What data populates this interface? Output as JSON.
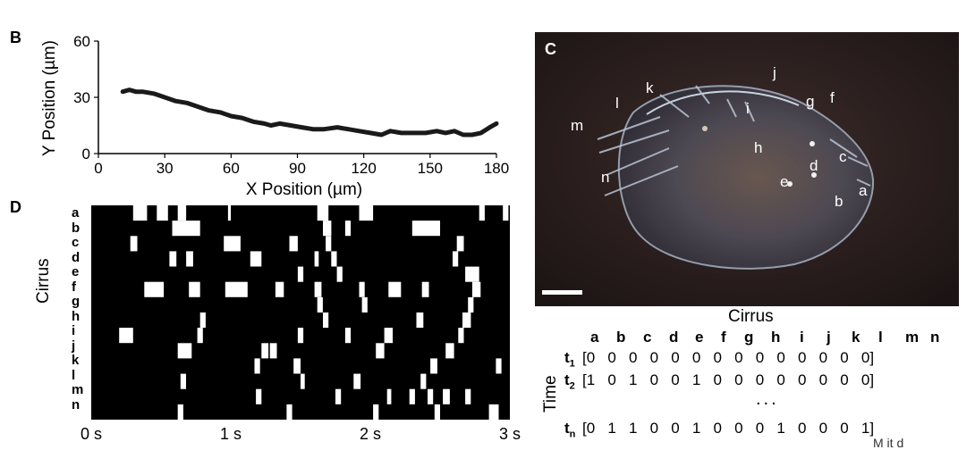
{
  "panels": {
    "B": "B",
    "C": "C",
    "D": "D"
  },
  "chart_data": {
    "type": "line",
    "xlabel": "X Position (µm)",
    "ylabel": "Y Position (µm)",
    "xlim": [
      0,
      180
    ],
    "ylim": [
      0,
      60
    ],
    "x_ticks": [
      "0",
      "30",
      "60",
      "90",
      "120",
      "150",
      "180"
    ],
    "y_ticks": [
      "0",
      "30",
      "60"
    ],
    "series": [
      {
        "x": [
          11,
          14,
          17,
          20,
          25,
          30,
          35,
          40,
          45,
          50,
          55,
          60,
          65,
          70,
          75,
          78,
          82,
          87,
          92,
          97,
          102,
          108,
          113,
          118,
          123,
          128,
          132,
          137,
          142,
          148,
          153,
          157,
          161,
          165,
          169,
          173,
          177,
          180
        ],
        "y": [
          33,
          34,
          33,
          33,
          32,
          30,
          28,
          27,
          25,
          23,
          22,
          20,
          19,
          17,
          16,
          15,
          16,
          15,
          14,
          13,
          13,
          14,
          13,
          12,
          11,
          10,
          12,
          11,
          11,
          11,
          12,
          11,
          12,
          10,
          10,
          11,
          14,
          16
        ]
      }
    ]
  },
  "raster": {
    "ylabel": "Cirrus",
    "rows": [
      "a",
      "b",
      "c",
      "d",
      "e",
      "f",
      "g",
      "h",
      "i",
      "j",
      "k",
      "l",
      "m",
      "n"
    ],
    "time_ticks": [
      "0 s",
      "1 s",
      "2 s",
      "3 s"
    ],
    "duration": 3,
    "events": [
      [
        [
          0.3,
          0.4
        ],
        [
          0.47,
          0.55
        ],
        [
          0.62,
          0.68
        ],
        [
          0.98,
          1.0
        ],
        [
          1.62,
          1.7
        ],
        [
          1.92,
          2.02
        ],
        [
          2.78,
          2.82
        ],
        [
          2.95,
          2.99
        ]
      ],
      [
        [
          0.58,
          0.78
        ],
        [
          1.66,
          1.72
        ],
        [
          1.82,
          1.86
        ],
        [
          2.3,
          2.5
        ]
      ],
      [
        [
          0.28,
          0.33
        ],
        [
          0.95,
          1.07
        ],
        [
          1.42,
          1.48
        ],
        [
          1.68,
          1.72
        ],
        [
          2.62,
          2.67
        ]
      ],
      [
        [
          0.56,
          0.61
        ],
        [
          0.68,
          0.73
        ],
        [
          1.14,
          1.22
        ],
        [
          1.6,
          1.63
        ],
        [
          1.72,
          1.76
        ],
        [
          2.59,
          2.63
        ]
      ],
      [
        [
          1.48,
          1.52
        ],
        [
          1.76,
          1.8
        ],
        [
          2.68,
          2.78
        ]
      ],
      [
        [
          0.38,
          0.52
        ],
        [
          0.7,
          0.78
        ],
        [
          0.96,
          1.12
        ],
        [
          1.32,
          1.38
        ],
        [
          1.6,
          1.65
        ],
        [
          1.92,
          1.96
        ],
        [
          2.13,
          2.22
        ],
        [
          2.37,
          2.42
        ],
        [
          2.73,
          2.79
        ]
      ],
      [
        [
          1.62,
          1.66
        ],
        [
          1.94,
          1.98
        ],
        [
          2.7,
          2.74
        ]
      ],
      [
        [
          0.78,
          0.82
        ],
        [
          1.66,
          1.7
        ],
        [
          2.33,
          2.38
        ],
        [
          2.66,
          2.72
        ]
      ],
      [
        [
          0.2,
          0.3
        ],
        [
          0.76,
          0.8
        ],
        [
          1.48,
          1.52
        ],
        [
          1.82,
          1.86
        ],
        [
          2.1,
          2.16
        ],
        [
          2.63,
          2.67
        ]
      ],
      [
        [
          0.62,
          0.72
        ],
        [
          1.22,
          1.27
        ],
        [
          1.28,
          1.33
        ],
        [
          2.04,
          2.1
        ],
        [
          2.54,
          2.6
        ]
      ],
      [
        [
          1.17,
          1.21
        ],
        [
          1.45,
          1.5
        ],
        [
          2.43,
          2.48
        ],
        [
          2.9,
          2.94
        ]
      ],
      [
        [
          0.64,
          0.68
        ],
        [
          1.5,
          1.53
        ],
        [
          1.88,
          1.93
        ],
        [
          2.36,
          2.4
        ]
      ],
      [
        [
          1.18,
          1.22
        ],
        [
          1.75,
          1.79
        ],
        [
          2.12,
          2.15
        ],
        [
          2.28,
          2.32
        ],
        [
          2.41,
          2.45
        ],
        [
          2.52,
          2.57
        ],
        [
          2.68,
          2.72
        ]
      ],
      [
        [
          0.62,
          0.66
        ],
        [
          1.4,
          1.44
        ],
        [
          2.02,
          2.06
        ],
        [
          2.46,
          2.5
        ],
        [
          2.85,
          2.92
        ]
      ]
    ]
  },
  "micro": {
    "labels": [
      {
        "t": "a"
      },
      {
        "t": "b"
      },
      {
        "t": "c"
      },
      {
        "t": "d"
      },
      {
        "t": "e"
      },
      {
        "t": "f"
      },
      {
        "t": "g"
      },
      {
        "t": "h"
      },
      {
        "t": "i"
      },
      {
        "t": "j"
      },
      {
        "t": "k"
      },
      {
        "t": "l"
      },
      {
        "t": "m"
      },
      {
        "t": "n"
      }
    ]
  },
  "matrix": {
    "title": "Cirrus",
    "side_label": "Time",
    "columns": [
      "a",
      "b",
      "c",
      "d",
      "e",
      "f",
      "g",
      "h",
      "i",
      "j",
      "k",
      "l",
      "m",
      "n"
    ],
    "rows": [
      {
        "t": "t",
        "sub": "1",
        "open": "[0",
        "vals": "0   0   0   0   0   0   0   0   0   0   0   0",
        "close": "0]"
      },
      {
        "t": "t",
        "sub": "2",
        "open": "[1",
        "vals": "0   1   0   0   1   0   0   0   0   0   0   0",
        "close": "0]"
      },
      {
        "t": "t",
        "sub": "n",
        "open": "[0",
        "vals": "1   1   0   0   1   0   0   0   1   0   0   0",
        "close": "1]"
      }
    ],
    "ellipsis": "...",
    "cut_text": "M   it   d"
  }
}
